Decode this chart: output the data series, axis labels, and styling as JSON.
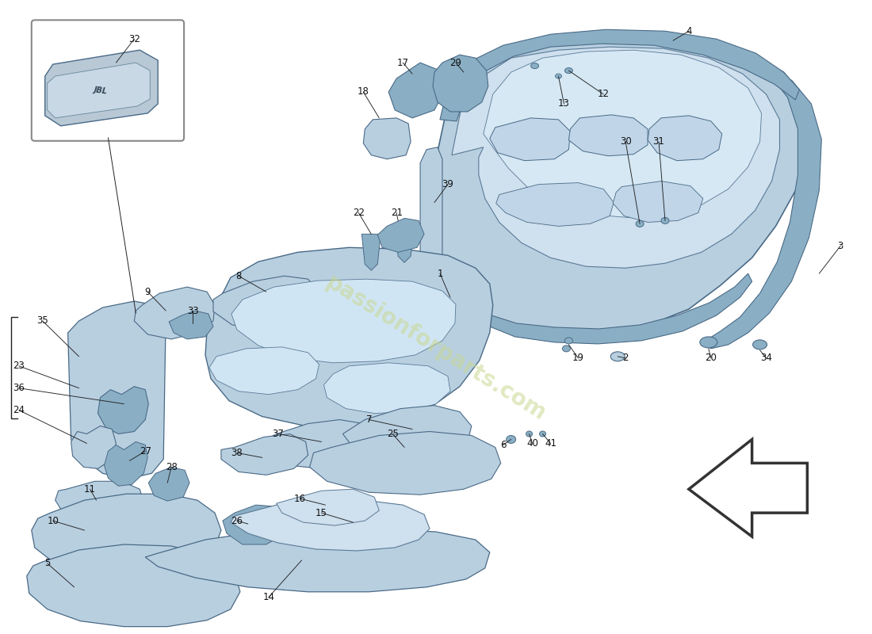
{
  "background_color": "#ffffff",
  "fig_width": 11.0,
  "fig_height": 8.0,
  "dpi": 100,
  "mc": "#b8cfe0",
  "lc": "#cfe0ee",
  "dc": "#8aafc5",
  "ec": "#5a7a96",
  "ec2": "#4a6a86",
  "wc": "#c8d890",
  "label_fs": 8.5,
  "label_color": "#111111",
  "line_color": "#222222"
}
